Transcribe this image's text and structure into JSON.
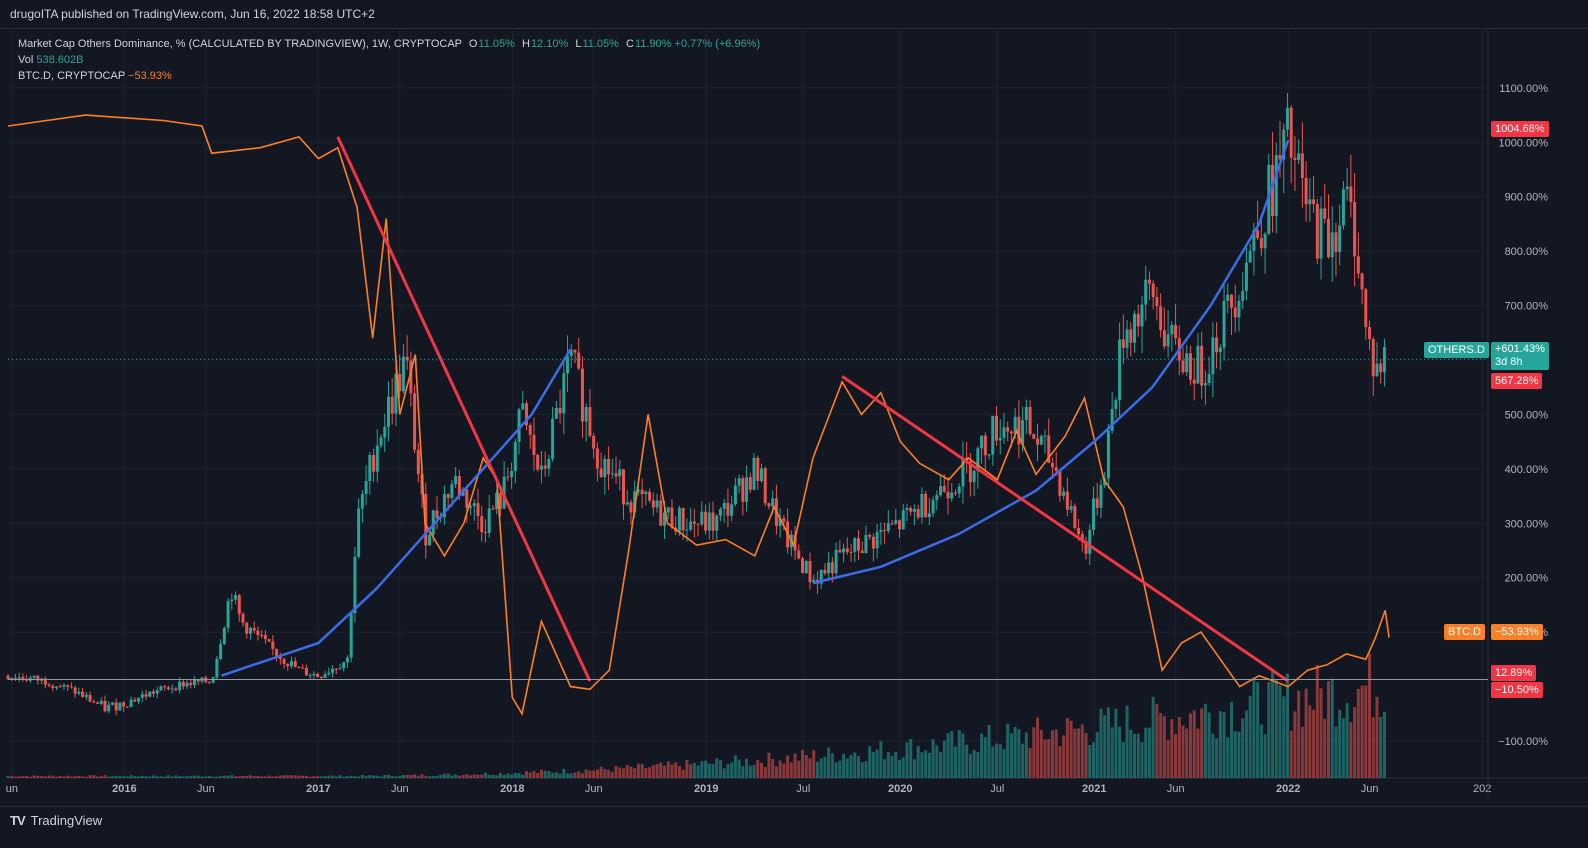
{
  "header": {
    "published": "drugoITA published on TradingView.com, Jun 16, 2022 18:58 UTC+2"
  },
  "legend": {
    "main_title": "Market Cap Others Dominance, % (CALCULATED BY TRADINGVIEW), 1W, CRYPTOCAP",
    "o_label": "O",
    "o_value": "11.05%",
    "h_label": "H",
    "h_value": "12.10%",
    "l_label": "L",
    "l_value": "11.05%",
    "c_label": "C",
    "c_value": "11.90%",
    "change": "+0.77% (+6.96%)",
    "vol_label": "Vol",
    "vol_value": "538.602B",
    "btcd_label": "BTC.D, CRYPTOCAP",
    "btcd_value": "−53.93%"
  },
  "tags": {
    "high_tag": "1004.68%",
    "others_name": "OTHERS.D",
    "others_value": "+601.43%",
    "others_countdown": "3d 8h",
    "others_second": "567.28%",
    "btcd_name": "BTC.D",
    "btcd_value": "−53.93%",
    "base_value": "12.89%",
    "base_change": "−10.50%"
  },
  "colors": {
    "background": "#131722",
    "up": "#26a69a",
    "down": "#ef5350",
    "btcd_line": "#ff7f27",
    "curve": "#3d6ce8",
    "trendline": "#f23645",
    "grid": "#1e222d",
    "axis_text": "#b2b5be"
  },
  "footer": {
    "brand": "TradingView"
  },
  "chart_data": {
    "type": "candlestick",
    "title": "Market Cap Others Dominance, % (CALCULATED BY TRADINGVIEW), 1W, CRYPTOCAP",
    "y_unit": "% change",
    "y_ticks": [
      "1100.00%",
      "1000.00%",
      "900.00%",
      "800.00%",
      "700.00%",
      "600.00%",
      "500.00%",
      "400.00%",
      "300.00%",
      "200.00%",
      "100.00%",
      "−100.00%"
    ],
    "y_tick_values": [
      1100,
      1000,
      900,
      800,
      700,
      600,
      500,
      400,
      300,
      200,
      100,
      -100
    ],
    "x_ticks": [
      "un",
      "2016",
      "Jun",
      "2017",
      "Jun",
      "2018",
      "Jun",
      "2019",
      "Jul",
      "2020",
      "Jul",
      "2021",
      "Jun",
      "2022",
      "Jun",
      "202"
    ],
    "x_tick_dates": [
      2015.42,
      2016.0,
      2016.42,
      2017.0,
      2017.42,
      2018.0,
      2018.42,
      2019.0,
      2019.5,
      2020.0,
      2020.5,
      2021.0,
      2021.42,
      2022.0,
      2022.42,
      2023.0
    ],
    "x_range": [
      2015.4,
      2023.03
    ],
    "y_range": [
      -168,
      1210
    ],
    "others_d_path": [
      [
        2015.4,
        20
      ],
      [
        2015.6,
        10
      ],
      [
        2015.75,
        -10
      ],
      [
        2015.9,
        -40
      ],
      [
        2016.0,
        -30
      ],
      [
        2016.15,
        -10
      ],
      [
        2016.3,
        5
      ],
      [
        2016.45,
        10
      ],
      [
        2016.55,
        180
      ],
      [
        2016.6,
        120
      ],
      [
        2016.75,
        70
      ],
      [
        2016.9,
        30
      ],
      [
        2017.0,
        20
      ],
      [
        2017.15,
        50
      ],
      [
        2017.2,
        300
      ],
      [
        2017.3,
        450
      ],
      [
        2017.45,
        600
      ],
      [
        2017.55,
        280
      ],
      [
        2017.7,
        380
      ],
      [
        2017.85,
        300
      ],
      [
        2017.95,
        350
      ],
      [
        2018.05,
        500
      ],
      [
        2018.15,
        380
      ],
      [
        2018.3,
        600
      ],
      [
        2018.45,
        420
      ],
      [
        2018.6,
        350
      ],
      [
        2018.75,
        320
      ],
      [
        2018.9,
        300
      ],
      [
        2019.05,
        300
      ],
      [
        2019.25,
        400
      ],
      [
        2019.4,
        280
      ],
      [
        2019.55,
        195
      ],
      [
        2019.7,
        240
      ],
      [
        2019.85,
        270
      ],
      [
        2020.0,
        300
      ],
      [
        2020.2,
        360
      ],
      [
        2020.35,
        400
      ],
      [
        2020.5,
        480
      ],
      [
        2020.65,
        480
      ],
      [
        2020.8,
        400
      ],
      [
        2020.95,
        250
      ],
      [
        2021.05,
        400
      ],
      [
        2021.15,
        650
      ],
      [
        2021.3,
        720
      ],
      [
        2021.4,
        620
      ],
      [
        2021.55,
        580
      ],
      [
        2021.7,
        700
      ],
      [
        2021.85,
        850
      ],
      [
        2021.95,
        950
      ],
      [
        2022.0,
        1004
      ],
      [
        2022.1,
        870
      ],
      [
        2022.2,
        820
      ],
      [
        2022.3,
        890
      ],
      [
        2022.35,
        830
      ],
      [
        2022.4,
        650
      ],
      [
        2022.45,
        580
      ],
      [
        2022.5,
        601
      ]
    ],
    "btc_d_path": [
      [
        2015.4,
        1030
      ],
      [
        2015.6,
        1040
      ],
      [
        2015.8,
        1050
      ],
      [
        2016.0,
        1045
      ],
      [
        2016.2,
        1040
      ],
      [
        2016.4,
        1030
      ],
      [
        2016.45,
        980
      ],
      [
        2016.7,
        990
      ],
      [
        2016.9,
        1010
      ],
      [
        2017.0,
        970
      ],
      [
        2017.1,
        990
      ],
      [
        2017.2,
        880
      ],
      [
        2017.28,
        640
      ],
      [
        2017.35,
        860
      ],
      [
        2017.42,
        500
      ],
      [
        2017.5,
        610
      ],
      [
        2017.55,
        300
      ],
      [
        2017.65,
        240
      ],
      [
        2017.75,
        300
      ],
      [
        2017.85,
        420
      ],
      [
        2017.92,
        380
      ],
      [
        2018.0,
        -20
      ],
      [
        2018.05,
        -50
      ],
      [
        2018.15,
        120
      ],
      [
        2018.3,
        0
      ],
      [
        2018.4,
        -5
      ],
      [
        2018.5,
        30
      ],
      [
        2018.6,
        250
      ],
      [
        2018.7,
        500
      ],
      [
        2018.8,
        300
      ],
      [
        2018.95,
        260
      ],
      [
        2019.1,
        270
      ],
      [
        2019.25,
        240
      ],
      [
        2019.35,
        330
      ],
      [
        2019.45,
        260
      ],
      [
        2019.55,
        420
      ],
      [
        2019.7,
        560
      ],
      [
        2019.8,
        500
      ],
      [
        2019.9,
        540
      ],
      [
        2020.0,
        450
      ],
      [
        2020.1,
        410
      ],
      [
        2020.25,
        380
      ],
      [
        2020.35,
        420
      ],
      [
        2020.5,
        380
      ],
      [
        2020.6,
        470
      ],
      [
        2020.7,
        390
      ],
      [
        2020.85,
        460
      ],
      [
        2020.95,
        530
      ],
      [
        2021.05,
        380
      ],
      [
        2021.15,
        330
      ],
      [
        2021.25,
        200
      ],
      [
        2021.35,
        30
      ],
      [
        2021.45,
        80
      ],
      [
        2021.55,
        100
      ],
      [
        2021.65,
        50
      ],
      [
        2021.75,
        0
      ],
      [
        2021.85,
        20
      ],
      [
        2022.0,
        0
      ],
      [
        2022.1,
        30
      ],
      [
        2022.2,
        40
      ],
      [
        2022.3,
        60
      ],
      [
        2022.4,
        50
      ],
      [
        2022.45,
        90
      ],
      [
        2022.5,
        140
      ],
      [
        2022.52,
        90
      ]
    ],
    "blue_curve": [
      [
        2016.5,
        20
      ],
      [
        2017.0,
        80
      ],
      [
        2017.3,
        180
      ],
      [
        2017.6,
        300
      ],
      [
        2017.9,
        420
      ],
      [
        2018.1,
        500
      ],
      [
        2018.3,
        620
      ]
    ],
    "blue_curve_2": [
      [
        2019.55,
        190
      ],
      [
        2019.9,
        220
      ],
      [
        2020.3,
        280
      ],
      [
        2020.7,
        360
      ],
      [
        2021.0,
        450
      ],
      [
        2021.3,
        550
      ],
      [
        2021.6,
        700
      ],
      [
        2021.85,
        850
      ],
      [
        2022.0,
        1004
      ]
    ],
    "red_trendlines": [
      [
        [
          2017.1,
          1010
        ],
        [
          2018.4,
          10
        ]
      ],
      [
        [
          2019.7,
          570
        ],
        [
          2022.0,
          10
        ]
      ]
    ],
    "reference_line": 12.89,
    "current_level": 601.43
  }
}
